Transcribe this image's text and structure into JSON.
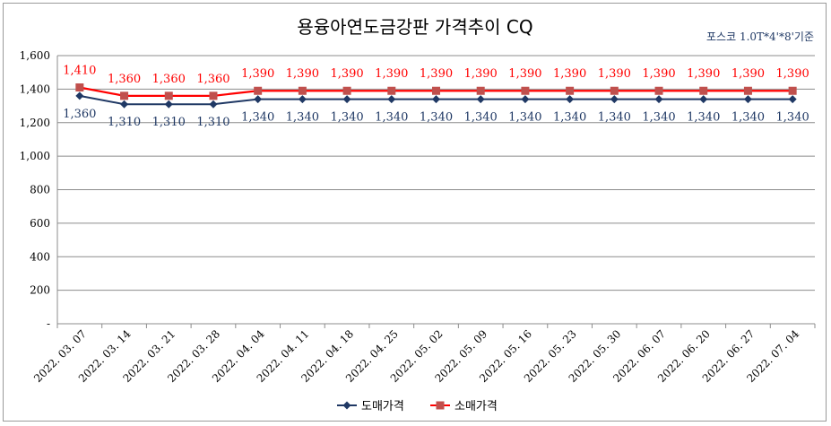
{
  "chart_data": {
    "type": "line",
    "title": "용융아연도금강판 가격추이 CQ",
    "subtitle": "포스코 1.0T*4'*8'기준",
    "categories": [
      "2022.03.07",
      "2022.03.14",
      "2022.03.21",
      "2022.03.28",
      "2022.04.04",
      "2022.04.11",
      "2022.04.18",
      "2022.04.25",
      "2022.05.02",
      "2022.05.09",
      "2022.05.16",
      "2022.05.23",
      "2022.05.30",
      "2022.06.07",
      "2022.06.20",
      "2022.06.27",
      "2022.07.04"
    ],
    "yticks": [
      "-",
      "200",
      "400",
      "600",
      "800",
      "1,000",
      "1,200",
      "1,400",
      "1,600"
    ],
    "ylim": [
      0,
      1600
    ],
    "grid": true,
    "legend_position": "bottom",
    "series": [
      {
        "name": "도매가격",
        "color": "#1f3864",
        "marker": "diamond",
        "values": [
          1360,
          1310,
          1310,
          1310,
          1340,
          1340,
          1340,
          1340,
          1340,
          1340,
          1340,
          1340,
          1340,
          1340,
          1340,
          1340,
          1340
        ],
        "labels": [
          "1,360",
          "1,310",
          "1,310",
          "1,310",
          "1,340",
          "1,340",
          "1,340",
          "1,340",
          "1,340",
          "1,340",
          "1,340",
          "1,340",
          "1,340",
          "1,340",
          "1,340",
          "1,340",
          "1,340"
        ]
      },
      {
        "name": "소매가격",
        "color": "#ff0000",
        "marker_color": "#c0504d",
        "marker": "square",
        "values": [
          1410,
          1360,
          1360,
          1360,
          1390,
          1390,
          1390,
          1390,
          1390,
          1390,
          1390,
          1390,
          1390,
          1390,
          1390,
          1390,
          1390
        ],
        "labels": [
          "1,410",
          "1,360",
          "1,360",
          "1,360",
          "1,390",
          "1,390",
          "1,390",
          "1,390",
          "1,390",
          "1,390",
          "1,390",
          "1,390",
          "1,390",
          "1,390",
          "1,390",
          "1,390",
          "1,390"
        ]
      }
    ]
  }
}
